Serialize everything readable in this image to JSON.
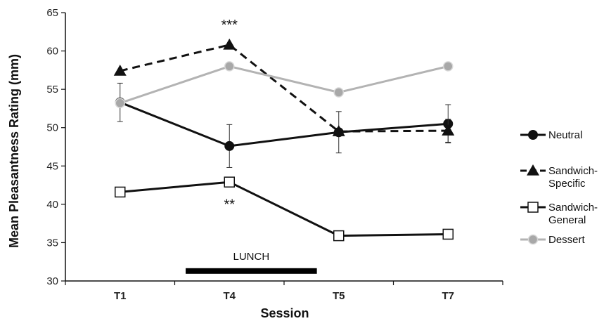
{
  "chart_data": {
    "type": "line",
    "title": "",
    "xlabel": "Session",
    "ylabel": "Mean Pleasantness Rating (mm)",
    "categories": [
      "T1",
      "T4",
      "T5",
      "T7"
    ],
    "ylim": [
      30,
      65
    ],
    "yticks": [
      30,
      35,
      40,
      45,
      50,
      55,
      60,
      65
    ],
    "grid": false,
    "legend_position": "right",
    "series": [
      {
        "name": "Neutral",
        "legend_lines": [
          "Neutral"
        ],
        "values": [
          53.3,
          47.6,
          49.4,
          50.5
        ],
        "error": [
          2.5,
          2.8,
          2.7,
          2.5
        ],
        "color": "#111111",
        "dash": "solid",
        "marker": "circle"
      },
      {
        "name": "Sandwich-Specific",
        "legend_lines": [
          "Sandwich-",
          "Specific"
        ],
        "values": [
          57.4,
          60.8,
          49.5,
          49.6
        ],
        "error": [
          0,
          0,
          0,
          1.5
        ],
        "color": "#111111",
        "dash": "dashed",
        "marker": "triangle"
      },
      {
        "name": "Sandwich-General",
        "legend_lines": [
          "Sandwich-",
          "General"
        ],
        "values": [
          41.6,
          42.9,
          35.9,
          36.1
        ],
        "error": [
          0,
          0,
          0,
          0
        ],
        "color": "#111111",
        "dash": "solid",
        "marker": "square-open"
      },
      {
        "name": "Dessert",
        "legend_lines": [
          "Dessert"
        ],
        "values": [
          53.2,
          58.0,
          54.6,
          58.0
        ],
        "error": [
          0,
          0,
          0,
          0
        ],
        "color": "#b3b3b3",
        "dash": "solid",
        "marker": "circle-gray"
      }
    ],
    "annotations": [
      {
        "text": "***",
        "category": "T4",
        "y": 62.8
      },
      {
        "text": "**",
        "category": "T4",
        "y": 39.4
      }
    ],
    "lunch_bar": {
      "label": "LUNCH",
      "from": 1.1,
      "to": 2.3,
      "y": 31.3
    }
  }
}
